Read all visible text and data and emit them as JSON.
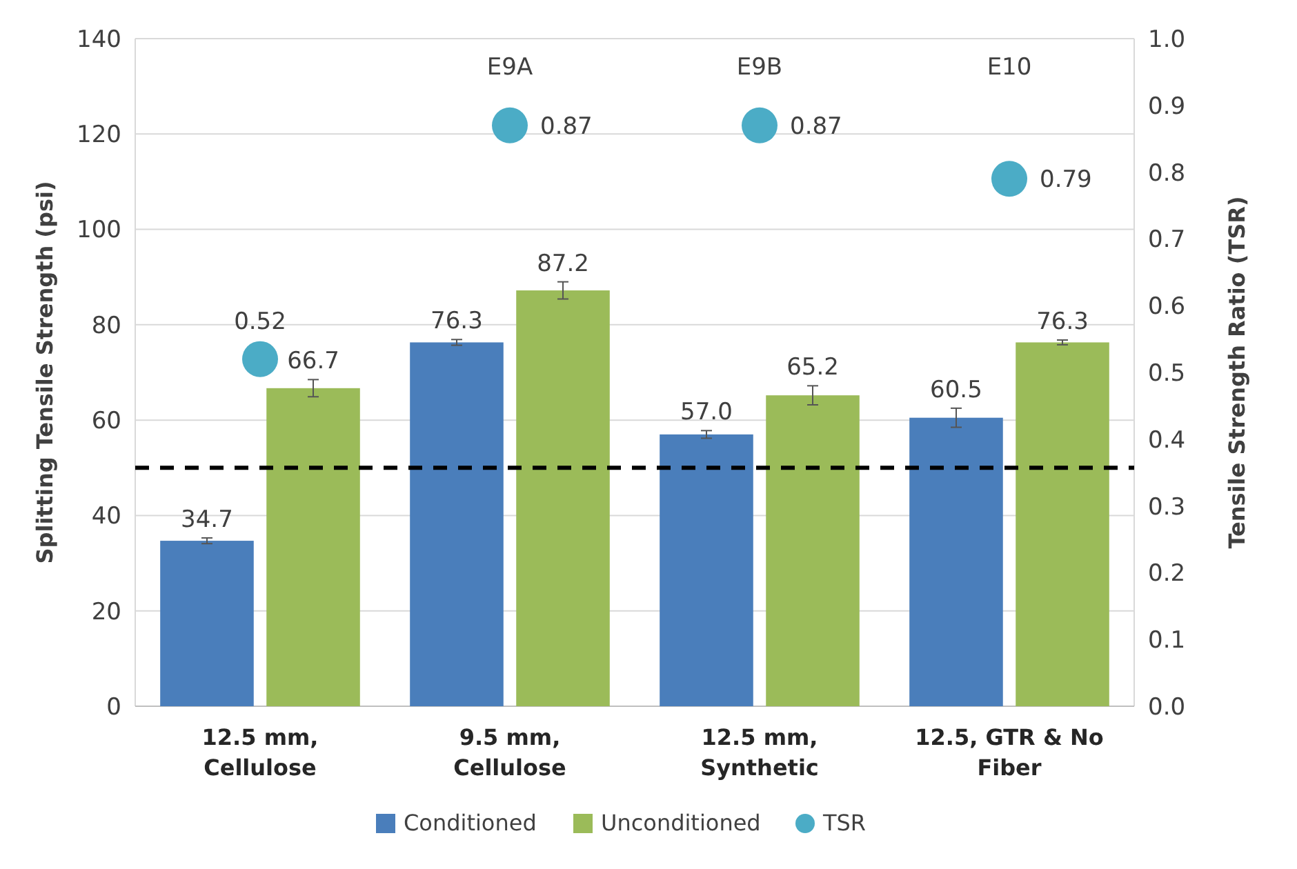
{
  "chart_data": {
    "type": "bar",
    "categories": [
      "12.5 mm, Cellulose",
      "9.5 mm, Cellulose",
      "12.5 mm, Synthetic",
      "12.5, GTR & No Fiber"
    ],
    "ylabel": "Splitting Tensile Strength (psi)",
    "y2label": "Tensile Strength Ratio (TSR)",
    "series": [
      {
        "name": "Conditioned",
        "color": "#4a7ebb",
        "values": [
          34.7,
          76.3,
          57.0,
          60.5
        ],
        "value_labels": [
          "34.7",
          "76.3",
          "57.0",
          "60.5"
        ],
        "errors": [
          0.6,
          0.6,
          0.8,
          2
        ]
      },
      {
        "name": "Unconditioned",
        "color": "#9bbb59",
        "values": [
          66.7,
          87.2,
          65.2,
          76.3
        ],
        "value_labels": [
          "66.7",
          "87.2",
          "65.2",
          "76.3"
        ],
        "errors": [
          1.8,
          1.8,
          2,
          0.5
        ]
      },
      {
        "name": "TSR",
        "type": "scatter",
        "axis": "y2",
        "color": "#4bacc6",
        "marker": "circle",
        "x": [
          "12.5 mm, Cellulose",
          "9.5 mm, Cellulose",
          "12.5 mm, Synthetic",
          "12.5, GTR & No Fiber"
        ],
        "values": [
          0.52,
          0.87,
          0.87,
          0.79
        ]
      }
    ],
    "ylim": [
      0,
      140
    ],
    "yticks": [
      0,
      20,
      40,
      60,
      80,
      100,
      120,
      140
    ],
    "y2lim": [
      0,
      1
    ],
    "y2ticks": [
      {
        "value": 0,
        "label": "0.0"
      },
      0.1,
      0.2,
      0.3,
      0.4,
      0.5,
      0.6,
      0.7,
      0.8,
      0.9,
      {
        "value": 1,
        "label": "1.0"
      }
    ],
    "ref_lines": [
      {
        "axis": "y",
        "value": 50,
        "color": "#000000",
        "line_style": "dashed"
      }
    ],
    "annotations": [
      "E9A",
      "E9B",
      "E10"
    ],
    "data_labels": true,
    "grid": "y",
    "legend": "bottom"
  }
}
